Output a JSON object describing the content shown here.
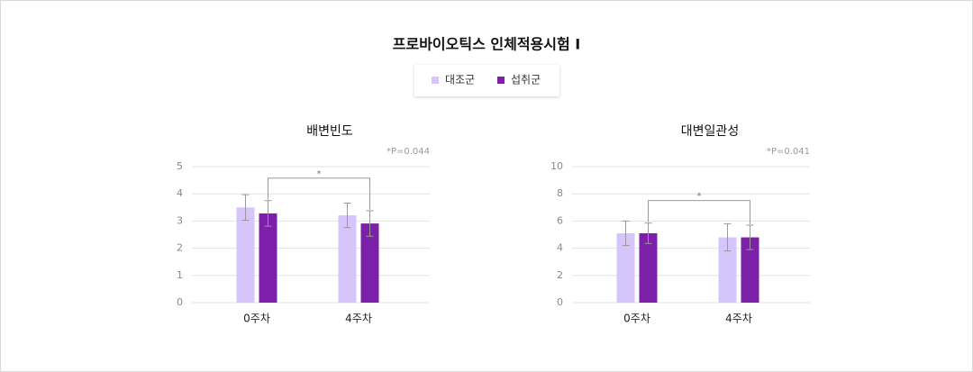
{
  "header": {
    "title": "프로바이오틱스 인체적용시험 Ⅰ"
  },
  "chart_data": [
    {
      "type": "bar",
      "title": "배변빈도",
      "annotation": "*P=0.044",
      "significance_label": "*",
      "categories": [
        "0주차",
        "4주차"
      ],
      "series": [
        {
          "name": "대조군",
          "color": "#d6c5fb",
          "values": [
            3.5,
            3.21
          ],
          "errors": [
            0.47,
            0.45
          ]
        },
        {
          "name": "섭취군",
          "color": "#7c20aa",
          "values": [
            3.28,
            2.91
          ],
          "errors": [
            0.47,
            0.47
          ]
        }
      ],
      "ylim": [
        0,
        5
      ],
      "yticks": [
        0,
        1,
        2,
        3,
        4,
        5
      ],
      "grid": true
    },
    {
      "type": "bar",
      "title": "대변일관성",
      "annotation": "*P=0.041",
      "significance_label": "*",
      "categories": [
        "0주차",
        "4주차"
      ],
      "series": [
        {
          "name": "대조군",
          "color": "#d6c5fb",
          "values": [
            5.1,
            4.8
          ],
          "errors": [
            0.9,
            1.0
          ]
        },
        {
          "name": "섭취군",
          "color": "#7c20aa",
          "values": [
            5.1,
            4.8
          ],
          "errors": [
            0.75,
            0.9
          ]
        }
      ],
      "ylim": [
        0,
        10
      ],
      "yticks": [
        0,
        2,
        4,
        6,
        8,
        10
      ],
      "grid": true
    }
  ]
}
